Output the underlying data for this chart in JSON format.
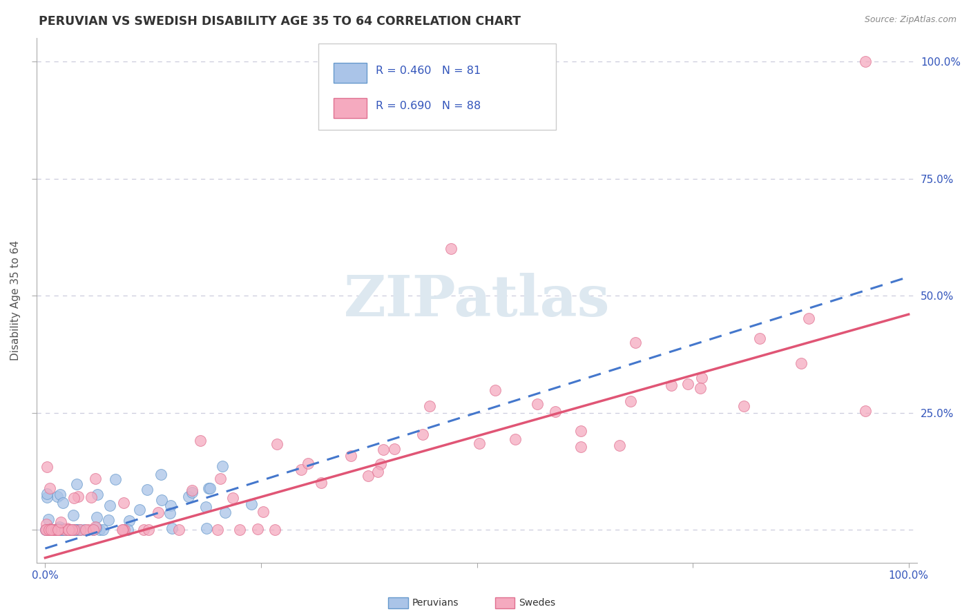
{
  "title": "PERUVIAN VS SWEDISH DISABILITY AGE 35 TO 64 CORRELATION CHART",
  "source": "Source: ZipAtlas.com",
  "ylabel": "Disability Age 35 to 64",
  "peruvian_color": "#aac4e8",
  "peruvian_edge": "#6699cc",
  "swedish_color": "#f5aabf",
  "swedish_edge": "#e07090",
  "regression_peruvian_color": "#4477cc",
  "regression_swedish_color": "#e05575",
  "R_peruvian": 0.46,
  "N_peruvian": 81,
  "R_swedish": 0.69,
  "N_swedish": 88,
  "legend_text_color": "#3355bb",
  "ytick_vals": [
    0.0,
    0.25,
    0.5,
    0.75,
    1.0
  ],
  "ytick_labels": [
    "",
    "25.0%",
    "50.0%",
    "75.0%",
    "100.0%"
  ],
  "grid_color": "#ccccdd",
  "watermark_color": "#dde8f0",
  "peru_slope": 0.58,
  "peru_intercept": -0.04,
  "swed_slope": 0.52,
  "swed_intercept": -0.06
}
